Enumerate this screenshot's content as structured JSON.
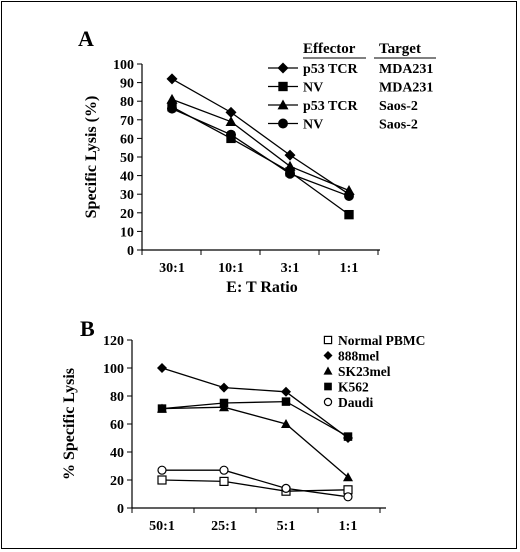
{
  "chart_data": [
    {
      "type": "line",
      "panel_label": "A",
      "categories": [
        "30:1",
        "10:1",
        "3:1",
        "1:1"
      ],
      "xlabel": "E: T Ratio",
      "ylabel": "Specific Lysis (%)",
      "ylim": [
        0,
        100
      ],
      "yticks": [
        0,
        10,
        20,
        30,
        40,
        50,
        60,
        70,
        80,
        90,
        100
      ],
      "legend_header": {
        "effector": "Effector",
        "target": "Target"
      },
      "legend_position": "top-right",
      "series": [
        {
          "effector": "p53 TCR",
          "target": "MDA231",
          "marker": "diamond",
          "color": "#000000",
          "values": [
            92,
            74,
            51,
            30
          ]
        },
        {
          "effector": "NV",
          "target": "MDA231",
          "marker": "square",
          "color": "#000000",
          "values": [
            77,
            60,
            42,
            19
          ]
        },
        {
          "effector": "p53 TCR",
          "target": "Saos-2",
          "marker": "triangle",
          "color": "#000000",
          "values": [
            81,
            69,
            45,
            32
          ]
        },
        {
          "effector": "NV",
          "target": "Saos-2",
          "marker": "circle",
          "color": "#000000",
          "values": [
            76,
            62,
            41,
            29
          ]
        }
      ]
    },
    {
      "type": "line",
      "panel_label": "B",
      "categories": [
        "50:1",
        "25:1",
        "5:1",
        "1:1"
      ],
      "xlabel": "",
      "ylabel": "% Specific Lysis",
      "ylim": [
        0,
        120
      ],
      "yticks": [
        0,
        20,
        40,
        60,
        80,
        100,
        120
      ],
      "legend_position": "top-right",
      "series": [
        {
          "name": "Normal PBMC",
          "marker": "square-open",
          "color": "#000000",
          "values": [
            20,
            19,
            12,
            13
          ]
        },
        {
          "name": "888mel",
          "marker": "diamond",
          "color": "#000000",
          "values": [
            100,
            86,
            83,
            50
          ]
        },
        {
          "name": "SK23mel",
          "marker": "triangle",
          "color": "#000000",
          "values": [
            71,
            72,
            60,
            22
          ]
        },
        {
          "name": "K562",
          "marker": "square",
          "color": "#000000",
          "values": [
            71,
            75,
            76,
            51
          ]
        },
        {
          "name": "Daudi",
          "marker": "circle-open",
          "color": "#000000",
          "values": [
            27,
            27,
            14,
            8
          ]
        }
      ]
    }
  ]
}
